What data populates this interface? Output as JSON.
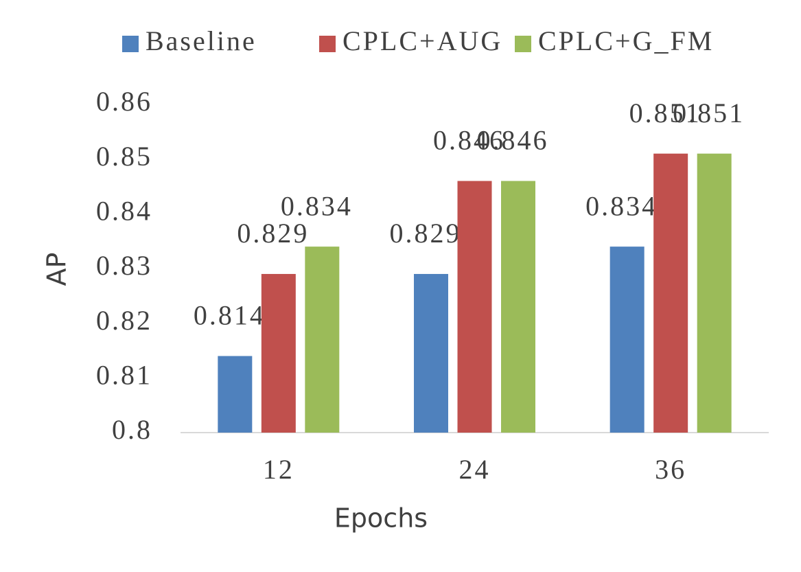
{
  "chart_data": {
    "type": "bar",
    "categories": [
      "12",
      "24",
      "36"
    ],
    "series": [
      {
        "name": "Baseline",
        "color": "#4f81bd",
        "values": [
          0.814,
          0.829,
          0.834
        ]
      },
      {
        "name": "CPLC+AUG",
        "color": "#c0504d",
        "values": [
          0.829,
          0.846,
          0.851
        ]
      },
      {
        "name": "CPLC+G_FM",
        "color": "#9bbb59",
        "values": [
          0.834,
          0.846,
          0.851
        ]
      }
    ],
    "x_label": "Epochs",
    "y_label": "AP",
    "ylim": [
      0.8,
      0.86
    ],
    "yticks": [
      0.8,
      0.81,
      0.82,
      0.83,
      0.84,
      0.85,
      0.86
    ],
    "grid": false,
    "legend": "top"
  }
}
